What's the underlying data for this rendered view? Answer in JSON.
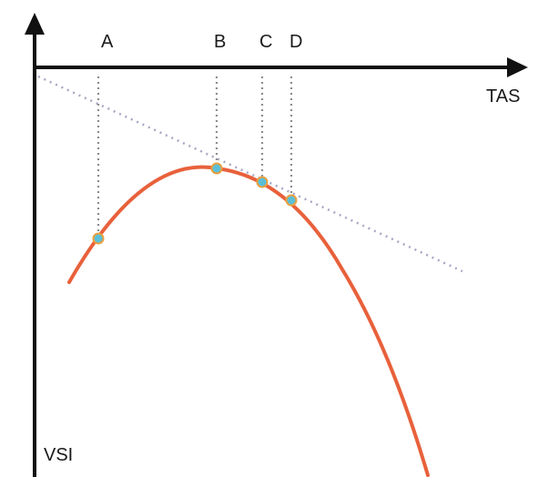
{
  "diagram": {
    "x_axis_label": "TAS",
    "y_axis_label": "VSI",
    "point_labels": [
      "A",
      "B",
      "C",
      "D"
    ],
    "colors": {
      "axes": "#111111",
      "curve": "#e8613b",
      "tangent_line": "#a6a8c4",
      "guide_lines": "#8c8c8c",
      "point_fill": "#5bc0d8",
      "point_stroke": "#e8a040"
    }
  }
}
